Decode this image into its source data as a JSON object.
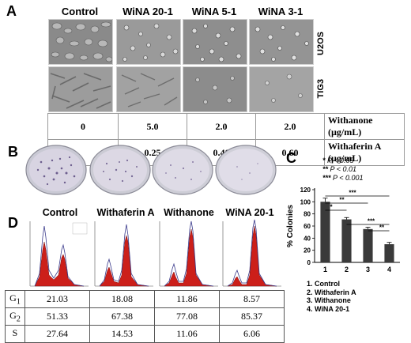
{
  "panels": {
    "A": "A",
    "B": "B",
    "C": "C",
    "D": "D"
  },
  "panel_a": {
    "columns": [
      "Control",
      "WiNA 20-1",
      "WiNA 5-1",
      "WiNA 3-1"
    ],
    "rows": [
      "U2OS",
      "TIG3"
    ],
    "conc_rows": [
      {
        "label": "Withanone (µg/mL)",
        "values": [
          "0",
          "5.0",
          "2.0",
          "2.0"
        ]
      },
      {
        "label": "Withaferin A (µg/mL)",
        "values": [
          "",
          "0.25",
          "0.40",
          "0.60"
        ]
      }
    ]
  },
  "panel_c": {
    "significance_legend": [
      {
        "marker": "*",
        "text": "P < 0.05"
      },
      {
        "marker": "**",
        "text": "P < 0.01"
      },
      {
        "marker": "***",
        "text": "P < 0.001"
      }
    ],
    "categories_legend": [
      "1. Control",
      "2. Withaferin A",
      "3. Withanone",
      "4. WiNA 20-1"
    ]
  },
  "chart_data": {
    "type": "bar",
    "categories": [
      "1",
      "2",
      "3",
      "4"
    ],
    "values": [
      100,
      71,
      55,
      30
    ],
    "errors": [
      6,
      3,
      3,
      3
    ],
    "ylabel": "% Colonies",
    "ylim": [
      0,
      120
    ],
    "yticks": [
      0,
      20,
      40,
      60,
      80,
      100,
      120
    ],
    "bar_color": "#3a3a3a",
    "significance": [
      {
        "from": 1,
        "to": 2,
        "label": "*"
      },
      {
        "from": 1,
        "to": 3,
        "label": "**"
      },
      {
        "from": 1,
        "to": 4,
        "label": "***"
      },
      {
        "from": 2,
        "to": 4,
        "label": "***"
      },
      {
        "from": 3,
        "to": 4,
        "label": "**"
      }
    ]
  },
  "panel_d": {
    "titles": [
      "Control",
      "Withaferin A",
      "Withanone",
      "WiNA 20-1"
    ],
    "table": [
      {
        "phase": "G1",
        "phase_main": "G",
        "phase_sub": "1",
        "values": [
          "21.03",
          "18.08",
          "11.86",
          "8.57"
        ]
      },
      {
        "phase": "G2",
        "phase_main": "G",
        "phase_sub": "2",
        "values": [
          "51.33",
          "67.38",
          "77.08",
          "85.37"
        ]
      },
      {
        "phase": "S",
        "phase_main": "S",
        "phase_sub": "",
        "values": [
          "27.64",
          "14.53",
          "11.06",
          "6.06"
        ]
      }
    ],
    "hist_fill": "#cc1f1a"
  }
}
